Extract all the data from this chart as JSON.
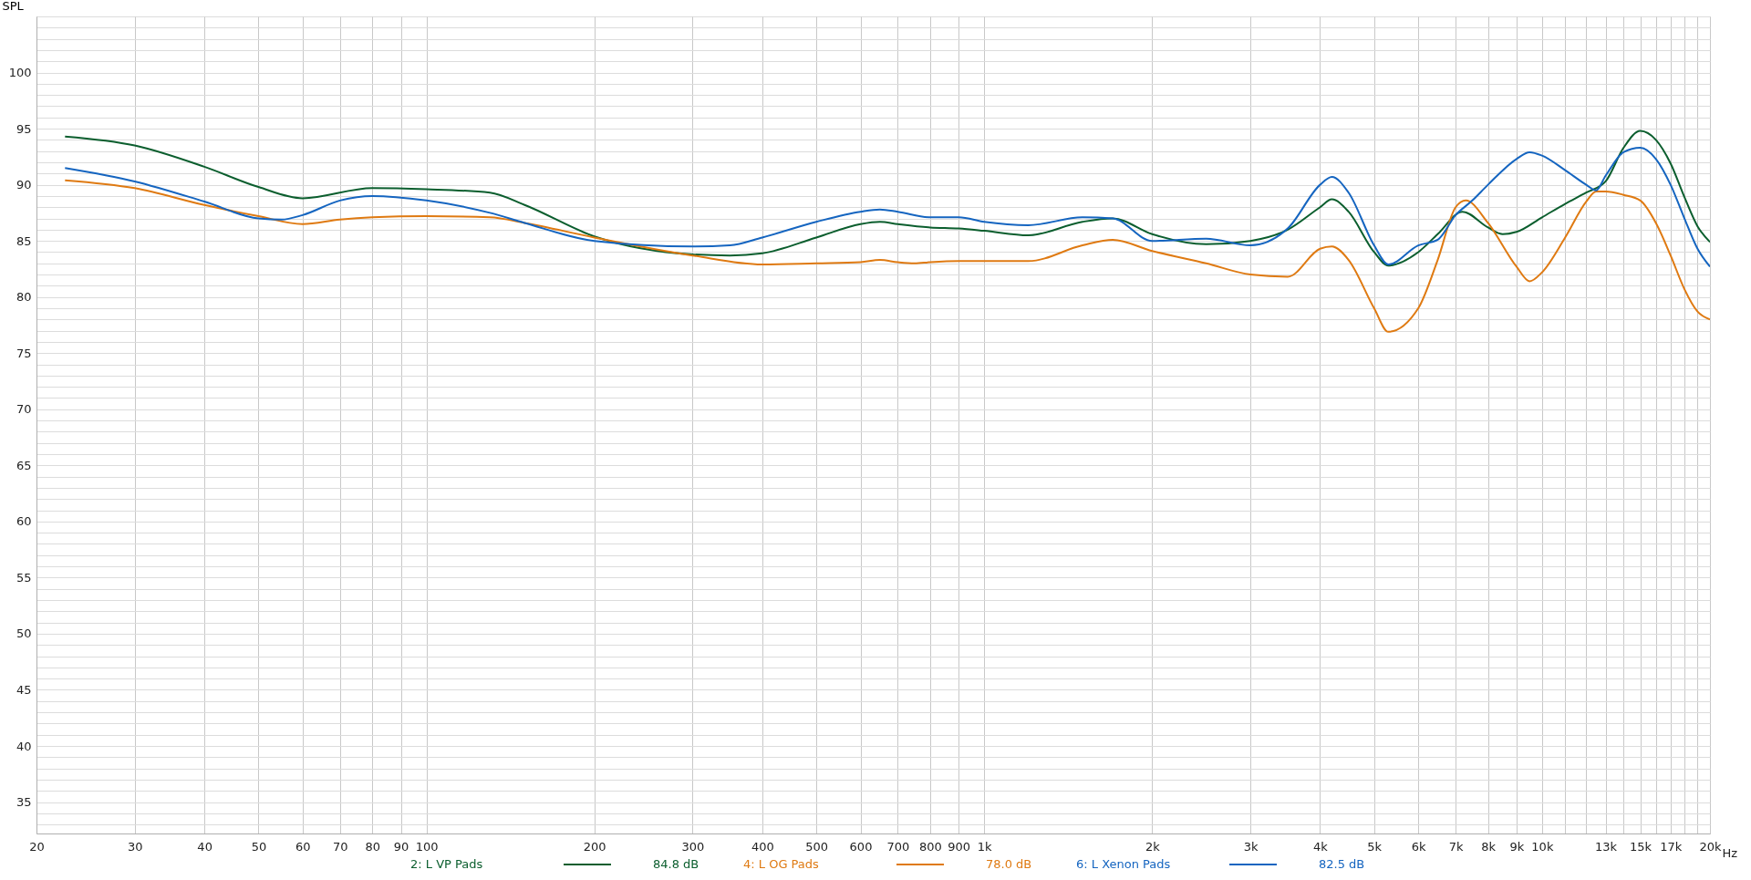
{
  "chart_data": {
    "type": "line",
    "ylabel": "SPL",
    "log": "x",
    "grid": true,
    "legend": "bottom",
    "marker": "none",
    "line_style": "solid",
    "xlim": [
      20,
      20000
    ],
    "ylim": [
      32.2,
      105
    ],
    "xticks": [
      20,
      30,
      40,
      50,
      60,
      70,
      80,
      90,
      100,
      200,
      300,
      400,
      500,
      600,
      700,
      800,
      900,
      {
        "value": 1000,
        "label": "1k"
      },
      {
        "value": 2000,
        "label": "2k"
      },
      {
        "value": 3000,
        "label": "3k"
      },
      {
        "value": 4000,
        "label": "4k"
      },
      {
        "value": 5000,
        "label": "5k"
      },
      {
        "value": 6000,
        "label": "6k"
      },
      {
        "value": 7000,
        "label": "7k"
      },
      {
        "value": 8000,
        "label": "8k"
      },
      {
        "value": 9000,
        "label": "9k"
      },
      {
        "value": 10000,
        "label": "10k"
      },
      {
        "value": 11000,
        "label": null
      },
      {
        "value": 12000,
        "label": null
      },
      {
        "value": 13000,
        "label": "13k"
      },
      {
        "value": 14000,
        "label": null
      },
      {
        "value": 15000,
        "label": "15k"
      },
      {
        "value": 16000,
        "label": null
      },
      {
        "value": 17000,
        "label": "17k"
      },
      {
        "value": 18000,
        "label": null
      },
      {
        "value": 19000,
        "label": null
      },
      {
        "value": 20000,
        "label": "20k"
      }
    ],
    "xlabel": "Hz",
    "yticks": [
      {
        "value": 33,
        "label": null
      },
      {
        "value": 34,
        "label": null
      },
      35,
      {
        "value": 36,
        "label": null
      },
      {
        "value": 37,
        "label": null
      },
      {
        "value": 38,
        "label": null
      },
      {
        "value": 39,
        "label": null
      },
      40,
      {
        "value": 41,
        "label": null
      },
      {
        "value": 42,
        "label": null
      },
      {
        "value": 43,
        "label": null
      },
      {
        "value": 44,
        "label": null
      },
      45,
      {
        "value": 46,
        "label": null
      },
      {
        "value": 47,
        "label": null
      },
      {
        "value": 48,
        "label": null
      },
      {
        "value": 49,
        "label": null
      },
      50,
      {
        "value": 51,
        "label": null
      },
      {
        "value": 52,
        "label": null
      },
      {
        "value": 53,
        "label": null
      },
      {
        "value": 54,
        "label": null
      },
      55,
      {
        "value": 56,
        "label": null
      },
      {
        "value": 57,
        "label": null
      },
      {
        "value": 58,
        "label": null
      },
      {
        "value": 59,
        "label": null
      },
      60,
      {
        "value": 61,
        "label": null
      },
      {
        "value": 62,
        "label": null
      },
      {
        "value": 63,
        "label": null
      },
      {
        "value": 64,
        "label": null
      },
      65,
      {
        "value": 66,
        "label": null
      },
      {
        "value": 67,
        "label": null
      },
      {
        "value": 68,
        "label": null
      },
      {
        "value": 69,
        "label": null
      },
      70,
      {
        "value": 71,
        "label": null
      },
      {
        "value": 72,
        "label": null
      },
      {
        "value": 73,
        "label": null
      },
      {
        "value": 74,
        "label": null
      },
      75,
      {
        "value": 76,
        "label": null
      },
      {
        "value": 77,
        "label": null
      },
      {
        "value": 78,
        "label": null
      },
      {
        "value": 79,
        "label": null
      },
      80,
      {
        "value": 81,
        "label": null
      },
      {
        "value": 82,
        "label": null
      },
      {
        "value": 83,
        "label": null
      },
      {
        "value": 84,
        "label": null
      },
      85,
      {
        "value": 86,
        "label": null
      },
      {
        "value": 87,
        "label": null
      },
      {
        "value": 88,
        "label": null
      },
      {
        "value": 89,
        "label": null
      },
      90,
      {
        "value": 91,
        "label": null
      },
      {
        "value": 92,
        "label": null
      },
      {
        "value": 93,
        "label": null
      },
      {
        "value": 94,
        "label": null
      },
      95,
      {
        "value": 96,
        "label": null
      },
      {
        "value": 97,
        "label": null
      },
      {
        "value": 98,
        "label": null
      },
      {
        "value": 99,
        "label": null
      },
      100,
      {
        "value": 101,
        "label": null
      },
      {
        "value": 102,
        "label": null
      },
      {
        "value": 103,
        "label": null
      },
      {
        "value": 104,
        "label": null
      }
    ],
    "annotations": [
      "84.8 dB",
      "78.0 dB",
      "82.5 dB"
    ],
    "series": [
      {
        "name": "2: L VP Pads",
        "color": "#0b5e2e",
        "x": [
          22.5,
          30,
          40,
          50,
          60,
          80,
          100,
          130,
          150,
          200,
          300,
          350,
          400,
          500,
          600,
          650,
          700,
          800,
          900,
          1000,
          1200,
          1500,
          1700,
          2000,
          2500,
          3000,
          3500,
          4000,
          4200,
          4500,
          5000,
          5300,
          6000,
          6500,
          7200,
          8000,
          8500,
          9000,
          10000,
          11000,
          12000,
          13000,
          14000,
          15000,
          16000,
          17000,
          18000,
          19000,
          20000
        ],
        "values": [
          94.3,
          93.5,
          91.6,
          89.8,
          88.8,
          89.7,
          89.6,
          89.3,
          88.2,
          85.4,
          83.8,
          83.7,
          83.9,
          85.3,
          86.5,
          86.7,
          86.5,
          86.2,
          86.1,
          85.9,
          85.5,
          86.7,
          87.0,
          85.6,
          84.7,
          85.0,
          86.0,
          88.0,
          88.7,
          87.6,
          84.0,
          82.8,
          84.0,
          85.6,
          87.6,
          86.2,
          85.6,
          85.8,
          87.1,
          88.3,
          89.3,
          90.3,
          93.3,
          94.8,
          94.0,
          91.9,
          88.9,
          86.3,
          84.9
        ]
      },
      {
        "name": "4: L OG Pads",
        "color": "#df7a12",
        "x": [
          22.5,
          30,
          40,
          50,
          60,
          70,
          80,
          100,
          130,
          150,
          200,
          300,
          400,
          500,
          600,
          650,
          700,
          750,
          800,
          900,
          1000,
          1200,
          1500,
          1700,
          2000,
          2500,
          3000,
          3500,
          4000,
          4200,
          4500,
          5000,
          5300,
          6000,
          6500,
          7000,
          7300,
          8000,
          9000,
          9500,
          10000,
          11000,
          12000,
          12500,
          13000,
          14000,
          15000,
          16000,
          17000,
          18000,
          19000,
          20000
        ],
        "values": [
          90.4,
          89.7,
          88.2,
          87.2,
          86.5,
          86.9,
          87.1,
          87.2,
          87.1,
          86.6,
          85.3,
          83.7,
          82.9,
          83.0,
          83.1,
          83.3,
          83.1,
          83.0,
          83.1,
          83.2,
          83.2,
          83.2,
          84.6,
          85.1,
          84.1,
          83.0,
          82.0,
          81.8,
          84.3,
          84.5,
          83.3,
          79.0,
          76.9,
          79.0,
          83.3,
          88.0,
          88.6,
          86.6,
          82.7,
          81.4,
          82.2,
          85.3,
          88.5,
          89.4,
          89.4,
          89.1,
          88.6,
          86.6,
          83.7,
          80.7,
          78.7,
          78.0
        ]
      },
      {
        "name": "6: L Xenon Pads",
        "color": "#1565c0",
        "x": [
          22.5,
          30,
          40,
          50,
          55,
          60,
          70,
          80,
          100,
          130,
          150,
          200,
          300,
          350,
          400,
          500,
          600,
          650,
          700,
          800,
          900,
          1000,
          1200,
          1500,
          1700,
          2000,
          2500,
          3000,
          3500,
          4000,
          4200,
          4500,
          5000,
          5300,
          6000,
          6500,
          7000,
          7500,
          8000,
          9000,
          9500,
          10000,
          11000,
          12000,
          12500,
          13000,
          14000,
          15000,
          16000,
          17000,
          18000,
          19000,
          20000
        ],
        "values": [
          91.5,
          90.3,
          88.5,
          87.0,
          86.9,
          87.3,
          88.6,
          89.0,
          88.6,
          87.5,
          86.6,
          85.0,
          84.5,
          84.6,
          85.3,
          86.7,
          87.6,
          87.8,
          87.6,
          87.1,
          87.1,
          86.7,
          86.4,
          87.1,
          87.0,
          85.0,
          85.2,
          84.6,
          86.1,
          90.0,
          90.7,
          89.3,
          84.6,
          82.9,
          84.6,
          85.1,
          87.3,
          88.6,
          90.0,
          92.3,
          92.9,
          92.6,
          91.3,
          90.0,
          89.5,
          90.8,
          92.9,
          93.3,
          92.3,
          90.0,
          87.0,
          84.3,
          82.7
        ]
      }
    ]
  }
}
